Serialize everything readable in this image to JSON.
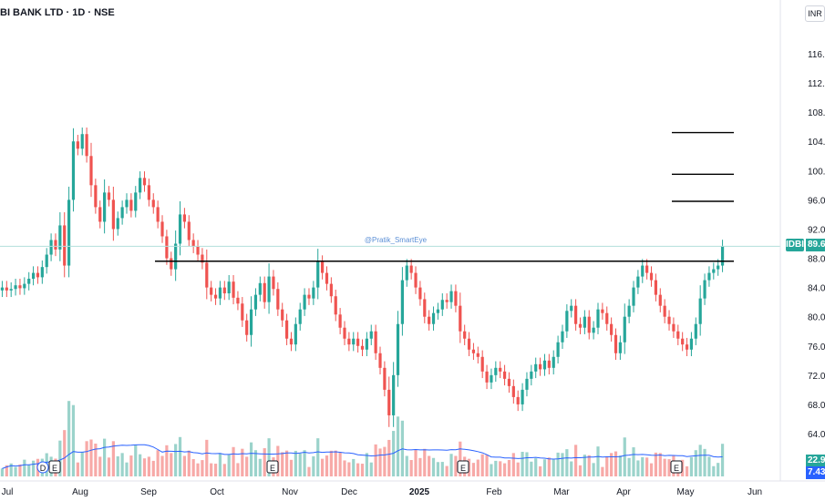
{
  "header": {
    "symbol_title": "BI BANK LTD · 1D · NSE",
    "currency": "INR"
  },
  "watermark": "@Pratik_SmartEye",
  "badges": {
    "symbol": "IDBI",
    "price": "89.64",
    "vol_ma": "22.97",
    "vol": "7.43"
  },
  "colors": {
    "up": "#26a69a",
    "down": "#ef5350",
    "up_vol": "#9bd3cb",
    "down_vol": "#f7a9a7",
    "vol_ma": "#2962ff",
    "levels": "#000000",
    "last_price_line": "#b2dfdb"
  },
  "events": [
    {
      "label": "D",
      "kind": "dividend"
    },
    {
      "label": "E",
      "kind": "earnings"
    },
    {
      "label": "E",
      "kind": "earnings"
    },
    {
      "label": "E",
      "kind": "earnings"
    },
    {
      "label": "E",
      "kind": "earnings"
    }
  ],
  "chart_data": {
    "type": "candlestick",
    "interval": "1D",
    "exchange": "NSE",
    "y_axis": {
      "ticks": [
        "116.00",
        "112.00",
        "108.00",
        "104.00",
        "100.00",
        "96.00",
        "92.00",
        "88.00",
        "84.00",
        "80.00",
        "76.00",
        "72.00",
        "68.00",
        "64.00"
      ],
      "range": [
        60,
        120
      ]
    },
    "x_axis": {
      "ticks": [
        "Jul",
        "Aug",
        "Sep",
        "Oct",
        "Nov",
        "Dec",
        "2025",
        "Feb",
        "Mar",
        "Apr",
        "May",
        "Jun"
      ],
      "bold": [
        "2025"
      ]
    },
    "close_series": [
      84,
      83.6,
      83.8,
      84.3,
      83.9,
      84.5,
      85.2,
      86,
      85.4,
      86.8,
      88.5,
      90.5,
      89.2,
      92.5,
      87,
      96,
      104,
      103,
      105,
      102,
      98,
      95,
      93,
      97,
      96,
      92,
      93.5,
      95,
      96,
      94.5,
      97,
      99,
      98,
      96,
      95,
      93,
      91,
      88,
      86.5,
      90,
      94,
      93,
      90.5,
      89.6,
      88.5,
      87.4,
      84,
      83,
      82.5,
      84,
      83.2,
      84.8,
      82.6,
      81.8,
      79.5,
      77.5,
      81,
      83,
      84.6,
      82,
      85.5,
      83.8,
      81,
      79.5,
      77,
      76.2,
      79,
      81,
      83,
      82.5,
      84,
      87.5,
      86,
      84.5,
      82.8,
      80.3,
      78.5,
      77,
      76.2,
      77,
      76,
      75.5,
      77,
      78,
      75,
      73,
      70,
      66.5,
      72,
      79,
      85,
      87,
      86,
      84,
      82.4,
      80,
      79,
      80.5,
      81,
      82.3,
      82,
      83.5,
      81.5,
      78,
      77,
      75.5,
      75,
      74.5,
      72.5,
      71,
      72,
      73,
      72.5,
      71.5,
      70.5,
      69,
      68,
      70,
      71.5,
      72.5,
      73.5,
      72.8,
      74,
      73,
      74.5,
      76.5,
      78,
      80.8,
      81.5,
      79,
      78.5,
      80,
      77.8,
      78.5,
      81,
      80.5,
      79,
      77.5,
      75,
      76.5,
      80,
      81.5,
      84,
      85.5,
      87,
      86,
      85,
      83,
      81.5,
      80,
      79,
      78,
      77,
      76.2,
      75.5,
      77,
      79,
      82.5,
      85,
      86,
      86.5,
      87,
      89.64
    ],
    "volume_millions": {
      "latest": 7.43,
      "moving_average": 22.97
    },
    "horizontal_levels": [
      87.6,
      95.8,
      99.5,
      105.2
    ],
    "last_price": 89.64
  }
}
